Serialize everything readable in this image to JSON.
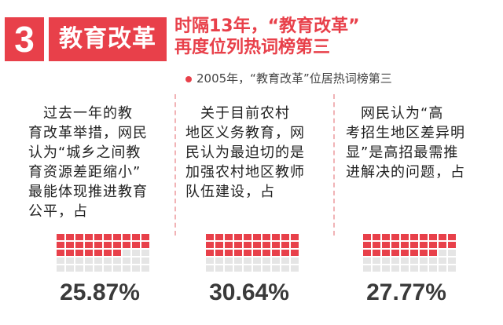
{
  "header": {
    "number": "3",
    "section_label": "教育改革",
    "headline_lines": [
      "时隔13年，“教育改革”",
      "再度位列热词榜第三"
    ],
    "subhead": "2005年，“教育改革”位居热词榜第三"
  },
  "columns": [
    {
      "quote": "　过去一年的教\n育改革举措，网民\n认为“城乡之间教\n育资源差距缩小”\n最能体现推进教育\n公平，占",
      "percent_label": "25.87%",
      "percent_value": 25.87
    },
    {
      "quote": "　关于目前农村\n地区义务教育，网\n民认为最迫切的是\n加强农村地区教师\n队伍建设，占",
      "percent_label": "30.64%",
      "percent_value": 30.64
    },
    {
      "quote": "　网民认为“高\n考招生地区差异明\n显”是高招最需推\n进解决的问题，占",
      "percent_label": "27.77%",
      "percent_value": 27.77
    }
  ],
  "colors": {
    "accent": "#e8404a",
    "grid_off": "#e5e5e5",
    "divider": "#f1b3b6"
  }
}
